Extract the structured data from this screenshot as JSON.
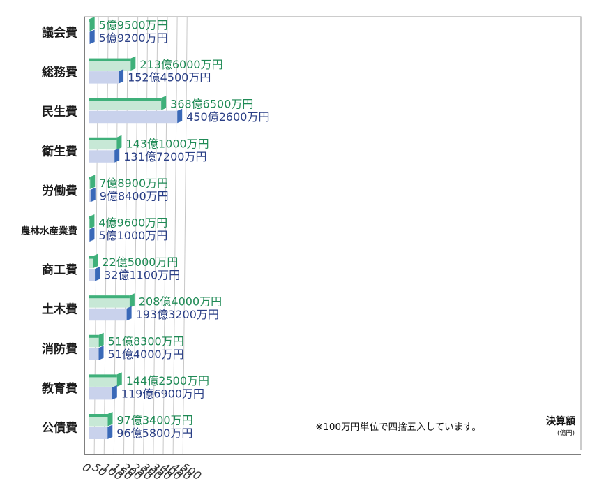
{
  "chart_data": {
    "type": "bar",
    "orientation": "horizontal",
    "categories": [
      "議会費",
      "総務費",
      "民生費",
      "衛生費",
      "労働費",
      "農林水産業費",
      "商工費",
      "土木費",
      "消防費",
      "教育費",
      "公債費"
    ],
    "series": [
      {
        "color": "#3fb07a",
        "values": [
          5.95,
          213.6,
          368.65,
          143.1,
          7.89,
          4.96,
          22.5,
          208.4,
          51.83,
          144.25,
          97.34
        ],
        "labels": [
          "5億9500万円",
          "213億6000万円",
          "368億6500万円",
          "143億1000万円",
          "7億8900万円",
          "4億9600万円",
          "22億5000万円",
          "208億4000万円",
          "51億8300万円",
          "144億2500万円",
          "97億3400万円"
        ]
      },
      {
        "color": "#3a69b8",
        "values": [
          5.92,
          152.45,
          450.26,
          131.72,
          9.84,
          5.1,
          32.11,
          193.32,
          51.4,
          119.69,
          96.58
        ],
        "labels": [
          "5億9200万円",
          "152億4500万円",
          "450億2600万円",
          "131億7200万円",
          "9億8400万円",
          "5億1000万円",
          "32億1100万円",
          "193億3200万円",
          "51億4000万円",
          "119億6900万円",
          "96億5800万円"
        ]
      }
    ],
    "x_ticks": [
      "0",
      "50",
      "100",
      "150",
      "200",
      "250",
      "300",
      "350",
      "400",
      "450",
      "500"
    ],
    "xlim": [
      0,
      500
    ],
    "xlabel": "決算額",
    "xlabel_unit": "(億円)",
    "note": "※100万円単位で四捨五入しています。",
    "grid": true
  }
}
